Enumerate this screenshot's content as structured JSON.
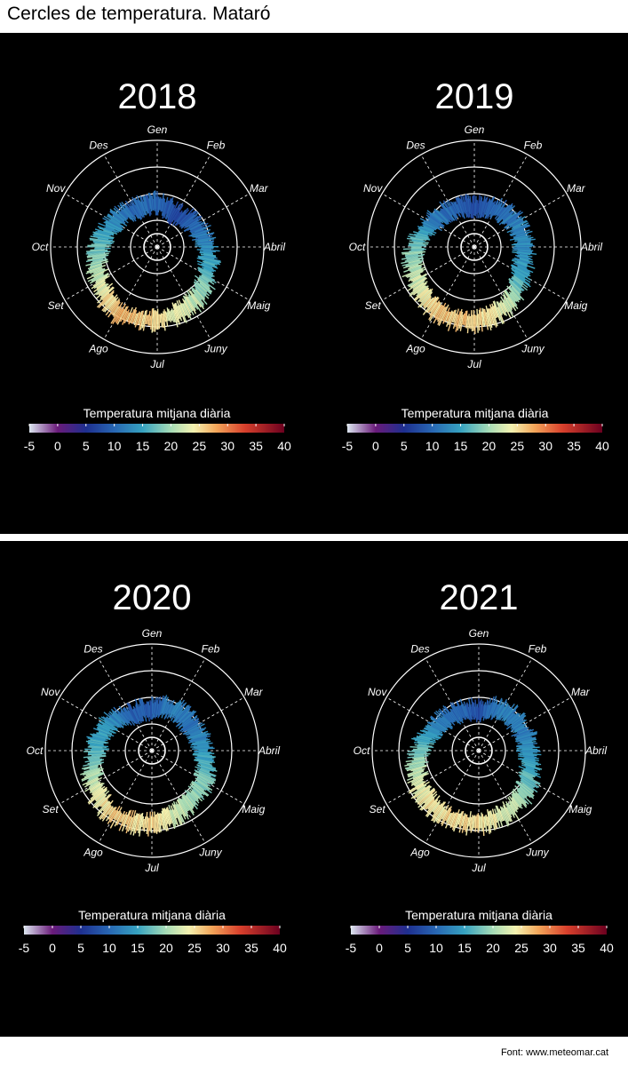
{
  "title": "Cercles de temperatura. Mataró",
  "source": "Font: www.meteomar.cat",
  "chart_data": [
    {
      "type": "radial-bar",
      "title": "2018",
      "months": [
        "Gen",
        "Feb",
        "Mar",
        "Abril",
        "Maig",
        "Juny",
        "Jul",
        "Ago",
        "Set",
        "Oct",
        "Nov",
        "Des"
      ],
      "monthly_mean_temp": [
        10,
        7,
        10,
        13,
        17,
        22,
        25,
        27,
        22,
        17,
        13,
        10
      ],
      "colorbar": {
        "title": "Temperatura mitjana diària",
        "ticks": [
          -5,
          0,
          5,
          10,
          15,
          20,
          25,
          30,
          35,
          40
        ],
        "range": [
          -5,
          40
        ]
      }
    },
    {
      "type": "radial-bar",
      "title": "2019",
      "months": [
        "Gen",
        "Feb",
        "Mar",
        "Abril",
        "Maig",
        "Juny",
        "Jul",
        "Ago",
        "Set",
        "Oct",
        "Nov",
        "Des"
      ],
      "monthly_mean_temp": [
        8,
        10,
        12,
        13,
        15,
        22,
        26,
        26,
        22,
        18,
        12,
        10
      ],
      "colorbar": {
        "title": "Temperatura mitjana diària",
        "ticks": [
          -5,
          0,
          5,
          10,
          15,
          20,
          25,
          30,
          35,
          40
        ],
        "range": [
          -5,
          40
        ]
      }
    },
    {
      "type": "radial-bar",
      "title": "2020",
      "months": [
        "Gen",
        "Feb",
        "Mar",
        "Abril",
        "Maig",
        "Juny",
        "Jul",
        "Ago",
        "Set",
        "Oct",
        "Nov",
        "Des"
      ],
      "monthly_mean_temp": [
        9,
        12,
        11,
        14,
        18,
        21,
        25,
        26,
        22,
        16,
        14,
        9
      ],
      "colorbar": {
        "title": "Temperatura mitjana diària",
        "ticks": [
          -5,
          0,
          5,
          10,
          15,
          20,
          25,
          30,
          35,
          40
        ],
        "range": [
          -5,
          40
        ]
      }
    },
    {
      "type": "radial-bar",
      "title": "2021",
      "months": [
        "Gen",
        "Feb",
        "Mar",
        "Abril",
        "Maig",
        "Juny",
        "Jul",
        "Ago",
        "Set",
        "Oct",
        "Nov",
        "Des"
      ],
      "monthly_mean_temp": [
        8,
        12,
        12,
        13,
        17,
        22,
        25,
        25,
        23,
        18,
        12,
        10
      ],
      "colorbar": {
        "title": "Temperatura mitjana diària",
        "ticks": [
          -5,
          0,
          5,
          10,
          15,
          20,
          25,
          30,
          35,
          40
        ],
        "range": [
          -5,
          40
        ]
      }
    }
  ]
}
